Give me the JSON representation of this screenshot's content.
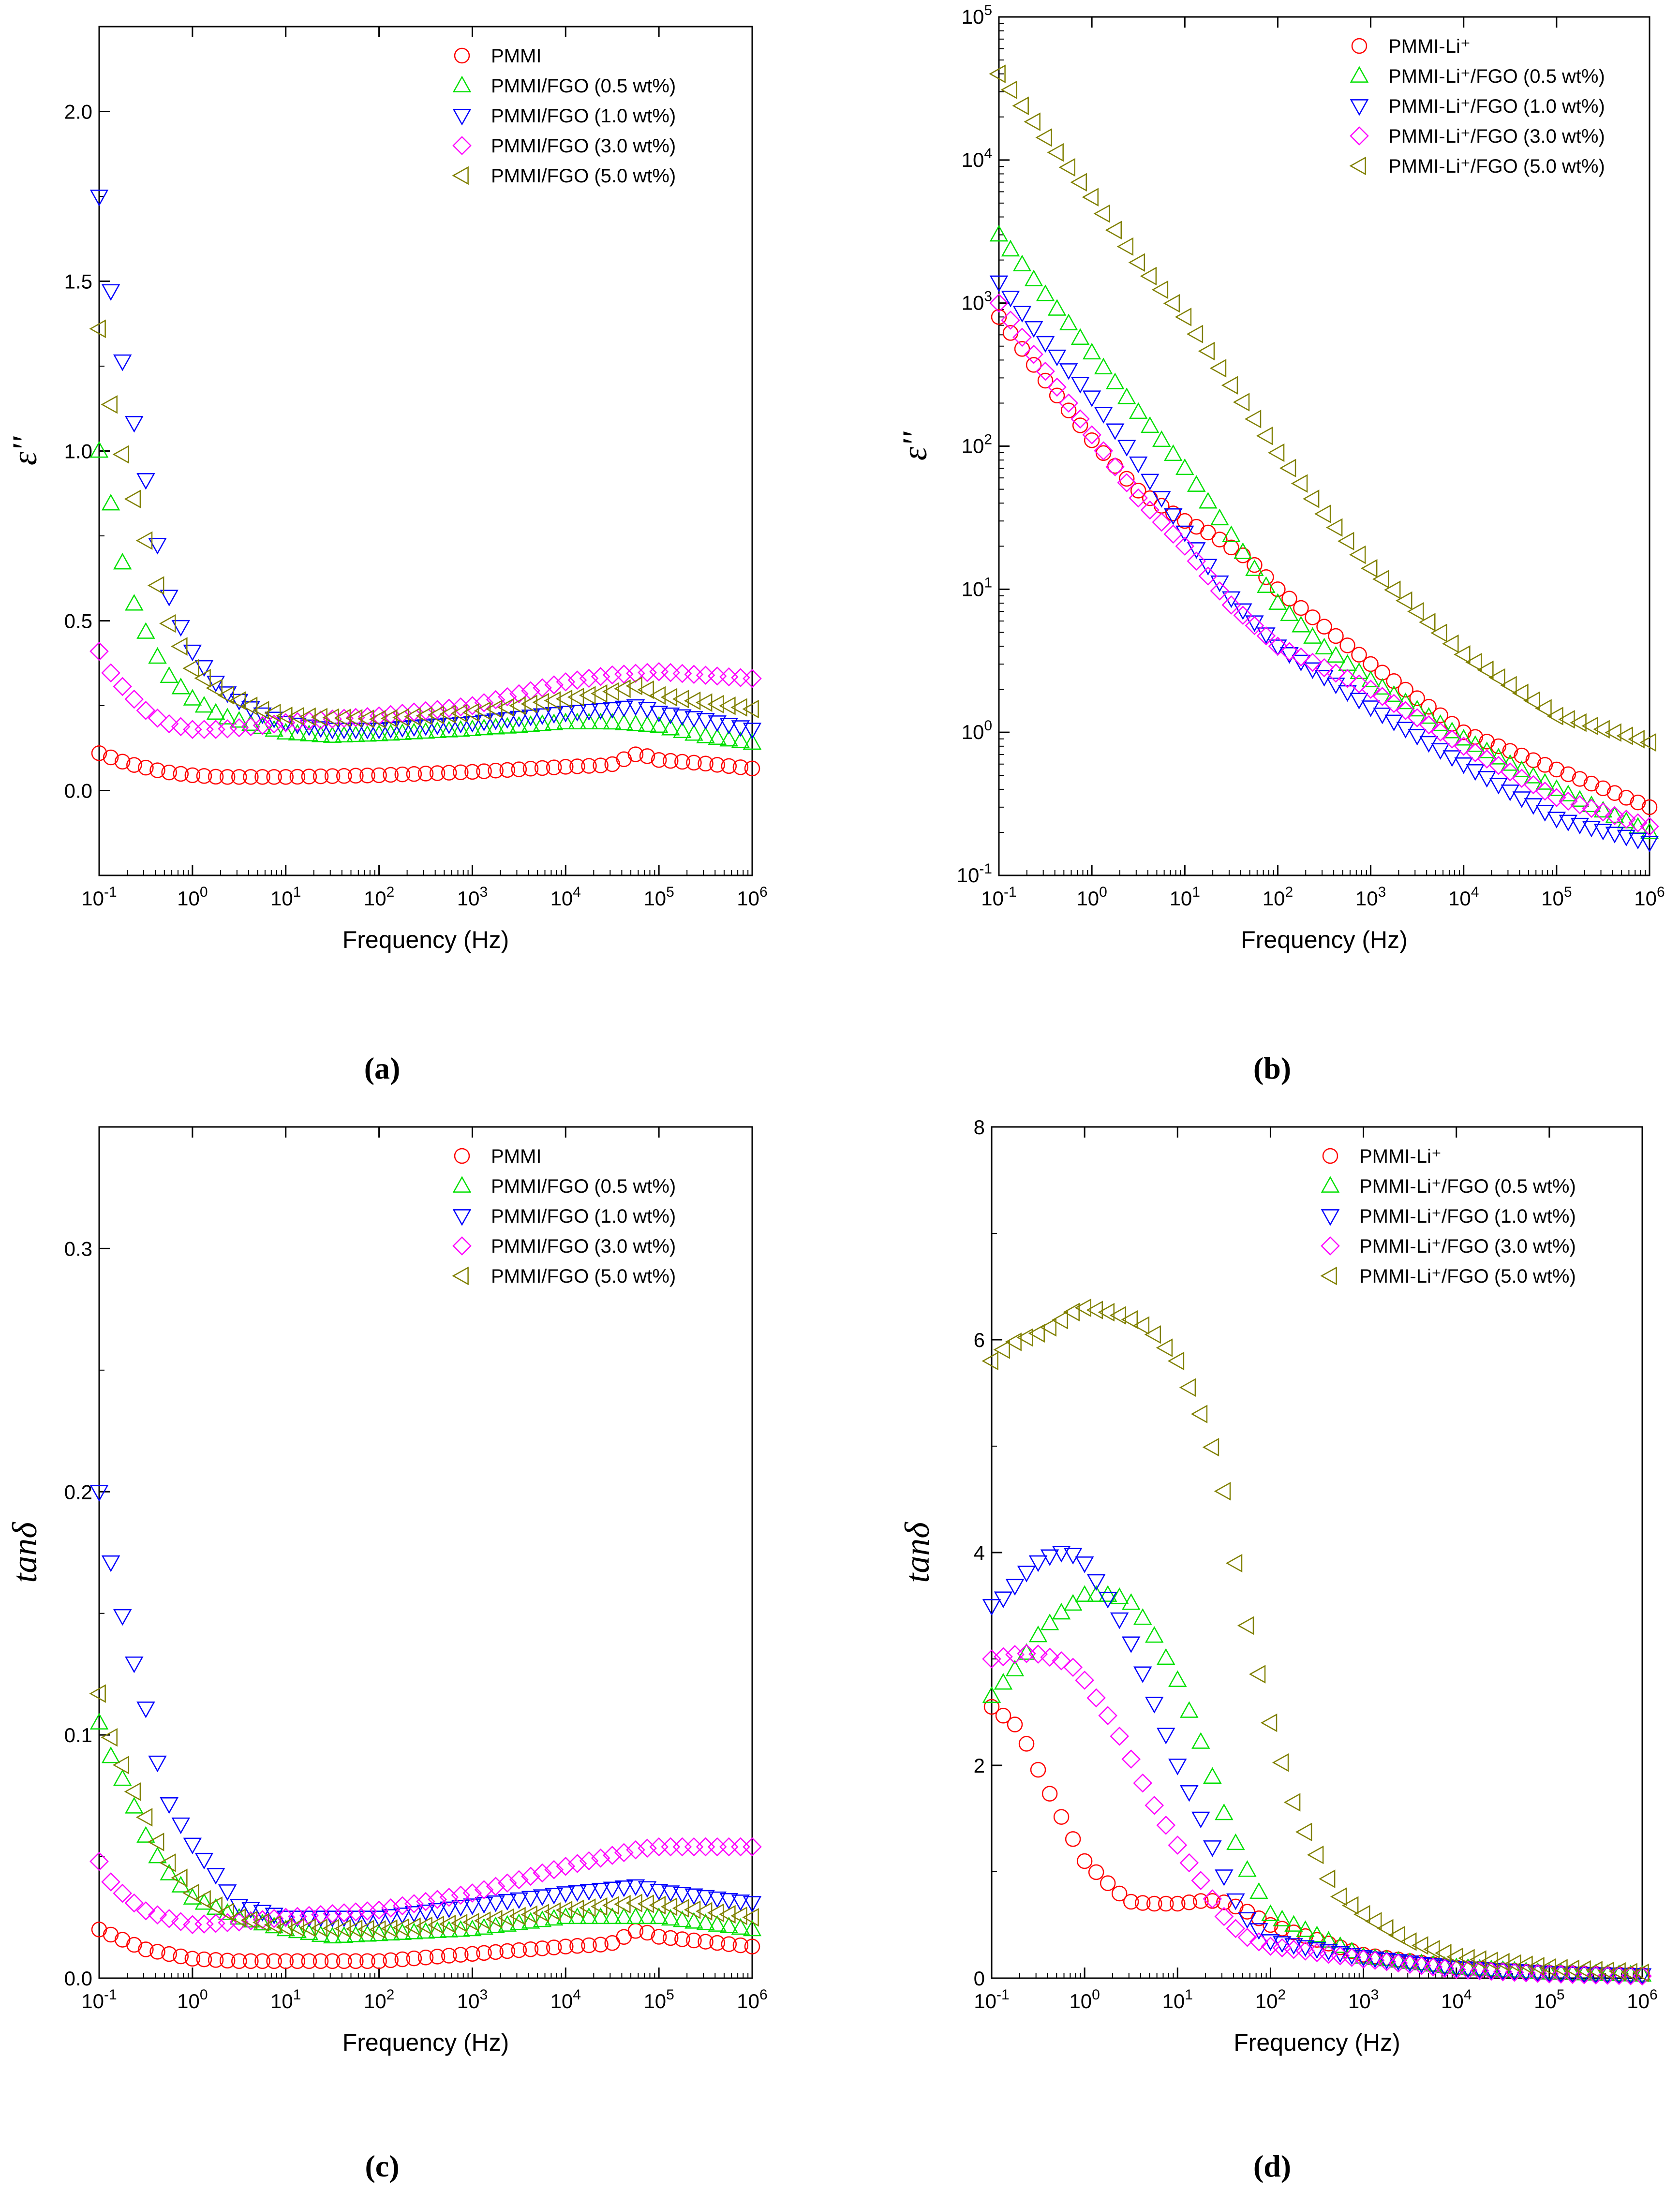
{
  "colors": {
    "PMMI": "#ff0000",
    "FGO05": "#00e000",
    "FGO10": "#0000ff",
    "FGO30": "#ff00ff",
    "FGO50": "#808000"
  },
  "chart_data": [
    {
      "panel": "(a)",
      "type": "scatter",
      "xlabel": "Frequency (Hz)",
      "ylabel": "ε''",
      "xscale": "log",
      "xlim": [
        0.1,
        1000000
      ],
      "yscale": "linear",
      "ylim": [
        -0.25,
        2.25
      ],
      "yticks": [
        0.0,
        0.5,
        1.0,
        1.5,
        2.0
      ],
      "ytick_labels": [
        "0.0",
        "0.5",
        "1.0",
        "1.5",
        "2.0"
      ],
      "legend_position": "top-right",
      "series": [
        {
          "name": "PMMI",
          "marker": "circle",
          "color_key": "PMMI",
          "x": [
            0.1,
            0.2,
            0.5,
            1,
            2,
            5,
            10,
            100,
            1000,
            10000,
            30000,
            60000,
            100000,
            300000,
            1000000
          ],
          "y": [
            0.11,
            0.08,
            0.055,
            0.045,
            0.04,
            0.04,
            0.04,
            0.045,
            0.055,
            0.07,
            0.075,
            0.11,
            0.09,
            0.08,
            0.065
          ]
        },
        {
          "name": "PMMI/FGO (0.5 wt%)",
          "marker": "triangle-up",
          "color_key": "FGO05",
          "x": [
            0.1,
            0.13,
            0.2,
            0.3,
            0.5,
            1,
            2,
            5,
            10,
            30,
            100,
            1000,
            10000,
            30000,
            100000,
            300000,
            1000000
          ],
          "y": [
            1.0,
            0.86,
            0.6,
            0.48,
            0.35,
            0.27,
            0.22,
            0.19,
            0.17,
            0.16,
            0.165,
            0.18,
            0.2,
            0.2,
            0.19,
            0.16,
            0.14
          ]
        },
        {
          "name": "PMMI/FGO (1.0 wt%)",
          "marker": "triangle-down",
          "color_key": "FGO10",
          "x": [
            0.1,
            0.13,
            0.2,
            0.3,
            0.4,
            0.5,
            0.7,
            1,
            2,
            5,
            10,
            30,
            100,
            1000,
            10000,
            30000,
            60000,
            100000,
            300000,
            1000000
          ],
          "y": [
            1.75,
            1.49,
            1.18,
            0.95,
            0.76,
            0.61,
            0.5,
            0.41,
            0.3,
            0.23,
            0.2,
            0.18,
            0.18,
            0.2,
            0.23,
            0.24,
            0.25,
            0.23,
            0.21,
            0.18
          ]
        },
        {
          "name": "PMMI/FGO (3.0 wt%)",
          "marker": "diamond",
          "color_key": "FGO30",
          "x": [
            0.1,
            0.13,
            0.2,
            0.3,
            0.5,
            1,
            2,
            5,
            10,
            30,
            100,
            1000,
            10000,
            30000,
            100000,
            300000,
            1000000
          ],
          "y": [
            0.41,
            0.35,
            0.29,
            0.24,
            0.2,
            0.18,
            0.18,
            0.19,
            0.2,
            0.21,
            0.22,
            0.25,
            0.32,
            0.34,
            0.35,
            0.34,
            0.33
          ]
        },
        {
          "name": "PMMI/FGO (5.0 wt%)",
          "marker": "triangle-left",
          "color_key": "FGO50",
          "x": [
            0.1,
            0.13,
            0.2,
            0.3,
            0.4,
            0.5,
            0.7,
            1,
            2,
            5,
            10,
            100,
            1000,
            10000,
            30000,
            60000,
            100000,
            300000,
            1000000
          ],
          "y": [
            1.36,
            1.15,
            0.93,
            0.76,
            0.63,
            0.52,
            0.44,
            0.36,
            0.29,
            0.24,
            0.22,
            0.21,
            0.23,
            0.27,
            0.29,
            0.31,
            0.28,
            0.26,
            0.24
          ]
        }
      ],
      "legend": [
        "PMMI",
        "PMMI/FGO (0.5 wt%)",
        "PMMI/FGO (1.0 wt%)",
        "PMMI/FGO (3.0 wt%)",
        "PMMI/FGO (5.0 wt%)"
      ]
    },
    {
      "panel": "(b)",
      "type": "scatter",
      "xlabel": "Frequency (Hz)",
      "ylabel": "ε''",
      "xscale": "log",
      "xlim": [
        0.1,
        1000000
      ],
      "yscale": "log",
      "ylim": [
        0.1,
        100000
      ],
      "legend_position": "top-right",
      "series": [
        {
          "name": "PMMI-Li+",
          "marker": "circle",
          "color_key": "PMMI",
          "x": [
            0.1,
            0.3,
            1,
            3,
            10,
            20,
            50,
            100,
            1000,
            10000,
            100000,
            1000000
          ],
          "y": [
            800,
            300,
            110,
            50,
            30,
            24,
            16,
            10,
            3,
            1,
            0.55,
            0.3
          ]
        },
        {
          "name": "PMMI-Li+/FGO (0.5 wt%)",
          "marker": "triangle-up",
          "color_key": "FGO05",
          "x": [
            0.1,
            0.3,
            1,
            3,
            10,
            30,
            100,
            300,
            1000,
            10000,
            100000,
            1000000
          ],
          "y": [
            3000,
            1200,
            450,
            180,
            70,
            25,
            8,
            4,
            2.3,
            0.9,
            0.4,
            0.2
          ]
        },
        {
          "name": "PMMI-Li+/FGO (1.0 wt%)",
          "marker": "triangle-down",
          "color_key": "FGO10",
          "x": [
            0.1,
            0.3,
            1,
            3,
            10,
            30,
            100,
            1000,
            10000,
            100000,
            1000000
          ],
          "y": [
            1400,
            550,
            220,
            80,
            25,
            9,
            4,
            1.5,
            0.6,
            0.25,
            0.17
          ]
        },
        {
          "name": "PMMI-Li+/FGO (3.0 wt%)",
          "marker": "diamond",
          "color_key": "FGO30",
          "x": [
            0.1,
            0.3,
            1,
            3,
            10,
            30,
            100,
            1000,
            10000,
            100000,
            1000000
          ],
          "y": [
            1000,
            350,
            120,
            45,
            20,
            8,
            4,
            2,
            0.8,
            0.35,
            0.22
          ]
        },
        {
          "name": "PMMI-Li+/FGO (5.0 wt%)",
          "marker": "triangle-left",
          "color_key": "FGO50",
          "x": [
            0.1,
            0.3,
            1,
            3,
            10,
            30,
            100,
            300,
            1000,
            10000,
            100000,
            1000000
          ],
          "y": [
            40000,
            15000,
            5500,
            2000,
            800,
            280,
            90,
            35,
            14,
            3.5,
            1.3,
            0.85
          ]
        }
      ],
      "legend": [
        "PMMI-Li⁺",
        "PMMI-Li⁺/FGO (0.5 wt%)",
        "PMMI-Li⁺/FGO (1.0 wt%)",
        "PMMI-Li⁺/FGO (3.0 wt%)",
        "PMMI-Li⁺/FGO (5.0 wt%)"
      ]
    },
    {
      "panel": "(c)",
      "type": "scatter",
      "xlabel": "Frequency (Hz)",
      "ylabel": "tanδ",
      "xscale": "log",
      "xlim": [
        0.1,
        1000000
      ],
      "yscale": "linear",
      "ylim": [
        0.0,
        0.35
      ],
      "yticks": [
        0.0,
        0.1,
        0.2,
        0.3
      ],
      "ytick_labels": [
        "0.0",
        "0.1",
        "0.2",
        "0.3"
      ],
      "legend_position": "top-right",
      "series": [
        {
          "name": "PMMI",
          "marker": "circle",
          "color_key": "PMMI",
          "x": [
            0.1,
            0.3,
            1,
            3,
            10,
            100,
            1000,
            10000,
            30000,
            60000,
            100000,
            1000000
          ],
          "y": [
            0.02,
            0.012,
            0.008,
            0.007,
            0.007,
            0.007,
            0.01,
            0.013,
            0.014,
            0.02,
            0.017,
            0.013
          ]
        },
        {
          "name": "PMMI/FGO (0.5 wt%)",
          "marker": "triangle-up",
          "color_key": "FGO05",
          "x": [
            0.1,
            0.13,
            0.2,
            0.3,
            0.5,
            1,
            3,
            10,
            30,
            100,
            1000,
            10000,
            100000,
            1000000
          ],
          "y": [
            0.105,
            0.092,
            0.078,
            0.06,
            0.045,
            0.033,
            0.025,
            0.02,
            0.017,
            0.018,
            0.02,
            0.025,
            0.025,
            0.02
          ]
        },
        {
          "name": "PMMI/FGO (1.0 wt%)",
          "marker": "triangle-down",
          "color_key": "FGO10",
          "x": [
            0.1,
            0.13,
            0.2,
            0.3,
            0.4,
            0.5,
            1,
            2,
            3,
            10,
            100,
            1000,
            10000,
            60000,
            100000,
            1000000
          ],
          "y": [
            0.2,
            0.173,
            0.14,
            0.115,
            0.093,
            0.075,
            0.055,
            0.04,
            0.03,
            0.025,
            0.025,
            0.03,
            0.035,
            0.038,
            0.036,
            0.031
          ]
        },
        {
          "name": "PMMI/FGO (3.0 wt%)",
          "marker": "diamond",
          "color_key": "FGO30",
          "x": [
            0.1,
            0.13,
            0.2,
            0.3,
            0.5,
            1,
            3,
            10,
            100,
            1000,
            10000,
            60000,
            100000,
            1000000
          ],
          "y": [
            0.048,
            0.04,
            0.033,
            0.028,
            0.025,
            0.022,
            0.023,
            0.025,
            0.028,
            0.035,
            0.046,
            0.053,
            0.054,
            0.054
          ]
        },
        {
          "name": "PMMI/FGO (5.0 wt%)",
          "marker": "triangle-left",
          "color_key": "FGO50",
          "x": [
            0.1,
            0.13,
            0.2,
            0.3,
            0.5,
            1,
            3,
            10,
            100,
            1000,
            10000,
            60000,
            100000,
            1000000
          ],
          "y": [
            0.117,
            0.1,
            0.083,
            0.068,
            0.05,
            0.035,
            0.025,
            0.021,
            0.02,
            0.023,
            0.028,
            0.031,
            0.03,
            0.025
          ]
        }
      ],
      "legend": [
        "PMMI",
        "PMMI/FGO (0.5 wt%)",
        "PMMI/FGO (1.0 wt%)",
        "PMMI/FGO (3.0 wt%)",
        "PMMI/FGO (5.0 wt%)"
      ]
    },
    {
      "panel": "(d)",
      "type": "scatter",
      "xlabel": "Frequency (Hz)",
      "ylabel": "tanδ",
      "xscale": "log",
      "xlim": [
        0.1,
        1000000
      ],
      "yscale": "linear",
      "ylim": [
        0,
        8
      ],
      "yticks": [
        0,
        2,
        4,
        6,
        8
      ],
      "ytick_labels": [
        "0",
        "2",
        "4",
        "6",
        "8"
      ],
      "legend_position": "top-right",
      "series": [
        {
          "name": "PMMI-Li+",
          "marker": "circle",
          "color_key": "PMMI",
          "x": [
            0.1,
            0.2,
            0.3,
            0.5,
            1,
            2,
            3,
            5,
            10,
            20,
            30,
            50,
            100,
            1000,
            10000,
            100000,
            1000000
          ],
          "y": [
            2.55,
            2.35,
            2.0,
            1.6,
            1.1,
            0.85,
            0.72,
            0.7,
            0.7,
            0.73,
            0.72,
            0.65,
            0.5,
            0.22,
            0.1,
            0.05,
            0.03
          ]
        },
        {
          "name": "PMMI-Li+/FGO (0.5 wt%)",
          "marker": "triangle-up",
          "color_key": "FGO05",
          "x": [
            0.1,
            0.2,
            0.3,
            0.5,
            1,
            2,
            3,
            5,
            10,
            20,
            30,
            50,
            100,
            1000,
            10000,
            100000,
            1000000
          ],
          "y": [
            2.65,
            2.95,
            3.2,
            3.4,
            3.6,
            3.6,
            3.55,
            3.3,
            2.8,
            2.1,
            1.6,
            1.1,
            0.6,
            0.2,
            0.1,
            0.05,
            0.03
          ]
        },
        {
          "name": "PMMI-Li+/FGO (1.0 wt%)",
          "marker": "triangle-down",
          "color_key": "FGO10",
          "x": [
            0.1,
            0.15,
            0.2,
            0.3,
            0.5,
            0.7,
            1,
            2,
            3,
            5,
            10,
            20,
            30,
            50,
            100,
            1000,
            10000,
            100000,
            1000000
          ],
          "y": [
            3.5,
            3.6,
            3.75,
            3.9,
            4.0,
            4.0,
            3.9,
            3.5,
            3.2,
            2.7,
            2.0,
            1.4,
            1.0,
            0.6,
            0.35,
            0.2,
            0.1,
            0.05,
            0.03
          ]
        },
        {
          "name": "PMMI-Li+/FGO (3.0 wt%)",
          "marker": "diamond",
          "color_key": "FGO30",
          "x": [
            0.1,
            0.2,
            0.3,
            0.5,
            0.7,
            1,
            2,
            3,
            5,
            10,
            20,
            30,
            50,
            100,
            1000,
            10000,
            100000,
            1000000
          ],
          "y": [
            3.0,
            3.05,
            3.05,
            3.0,
            2.95,
            2.8,
            2.4,
            2.1,
            1.7,
            1.25,
            0.85,
            0.6,
            0.4,
            0.3,
            0.18,
            0.08,
            0.04,
            0.02
          ]
        },
        {
          "name": "PMMI-Li+/FGO (5.0 wt%)",
          "marker": "triangle-left",
          "color_key": "FGO50",
          "x": [
            0.1,
            0.15,
            0.2,
            0.3,
            0.5,
            0.7,
            1,
            2,
            3,
            5,
            10,
            20,
            30,
            50,
            100,
            200,
            300,
            500,
            1000,
            3000,
            10000,
            100000,
            1000000
          ],
          "y": [
            5.8,
            5.95,
            6.0,
            6.05,
            6.15,
            6.25,
            6.3,
            6.25,
            6.2,
            6.1,
            5.8,
            5.2,
            4.7,
            3.5,
            2.4,
            1.5,
            1.2,
            0.8,
            0.6,
            0.35,
            0.2,
            0.1,
            0.05
          ]
        }
      ],
      "legend": [
        "PMMI-Li⁺",
        "PMMI-Li⁺/FGO (0.5 wt%)",
        "PMMI-Li⁺/FGO (1.0 wt%)",
        "PMMI-Li⁺/FGO (3.0 wt%)",
        "PMMI-Li⁺/FGO (5.0 wt%)"
      ]
    }
  ]
}
